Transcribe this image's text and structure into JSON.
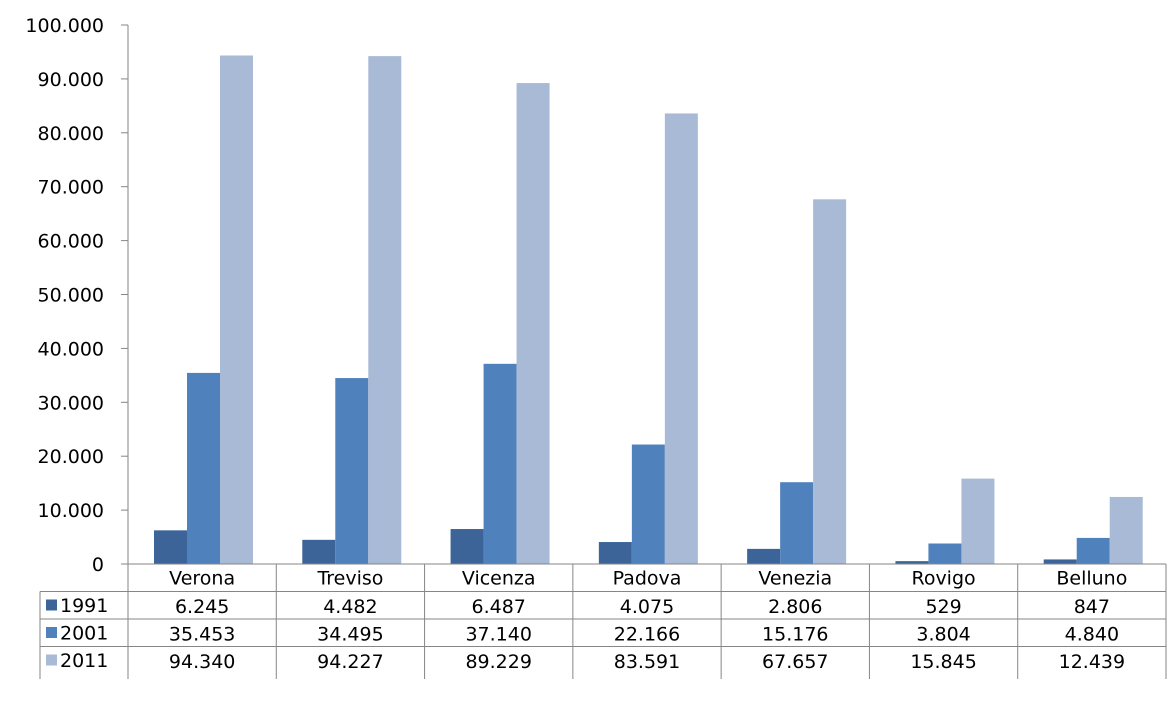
{
  "chart_data": {
    "type": "bar",
    "title": "",
    "xlabel": "",
    "ylabel": "",
    "ylim": [
      0,
      100000
    ],
    "y_ticks": [
      0,
      10000,
      20000,
      30000,
      40000,
      50000,
      60000,
      70000,
      80000,
      90000,
      100000
    ],
    "y_tick_labels": [
      "0",
      "10.000",
      "20.000",
      "30.000",
      "40.000",
      "50.000",
      "60.000",
      "70.000",
      "80.000",
      "90.000",
      "100.000"
    ],
    "grid": false,
    "legend": "data-table-left",
    "categories": [
      "Verona",
      "Treviso",
      "Vicenza",
      "Padova",
      "Venezia",
      "Rovigo",
      "Belluno"
    ],
    "series": [
      {
        "name": "1991",
        "color": "#3c6498",
        "values": [
          6245,
          4482,
          6487,
          4075,
          2806,
          529,
          847
        ],
        "labels": [
          "6.245",
          "4.482",
          "6.487",
          "4.075",
          "2.806",
          "529",
          "847"
        ]
      },
      {
        "name": "2001",
        "color": "#4f81bd",
        "values": [
          35453,
          34495,
          37140,
          22166,
          15176,
          3804,
          4840
        ],
        "labels": [
          "35.453",
          "34.495",
          "37.140",
          "22.166",
          "15.176",
          "3.804",
          "4.840"
        ]
      },
      {
        "name": "2011",
        "color": "#a9bad7",
        "values": [
          94340,
          94227,
          89229,
          83591,
          67657,
          15845,
          12439
        ],
        "labels": [
          "94.340",
          "94.227",
          "89.229",
          "83.591",
          "67.657",
          "15.845",
          "12.439"
        ]
      }
    ]
  }
}
